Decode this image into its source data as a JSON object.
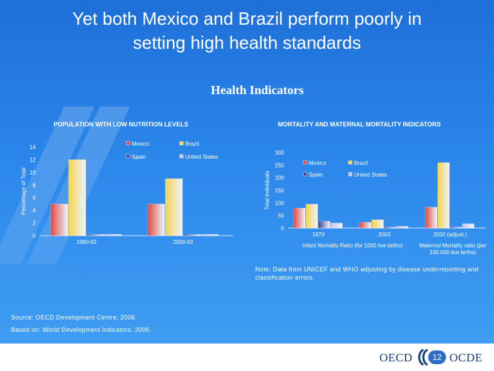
{
  "slide": {
    "title_line1": "Yet both Mexico and Brazil perform poorly in",
    "title_line2": "setting high health standards",
    "subtitle": "Health Indicators",
    "note": "Note: Data from UNICEF and WHO adjusting by disease underreporting and classification errors.",
    "source": "Source: OECD Development Centre, 2006.",
    "based_on": "Based on: World Development Indicators, 2006.",
    "page_number": "12",
    "logo_left": "OECD",
    "logo_right": "OCDE"
  },
  "colors": {
    "Mexico": "#e0443c",
    "Brazil": "#f6d24a",
    "Spain": "#3a3f8f",
    "United States": "#c9c2ee",
    "axis": "#d6e6fb"
  },
  "chart_data": [
    {
      "type": "bar",
      "title": "POPULATION WITH LOW NUTRITION LEVELS",
      "ylabel": "Percentage of Total",
      "xlabel": "",
      "ylim": [
        0,
        14
      ],
      "yticks": [
        0,
        2,
        4,
        6,
        8,
        10,
        12,
        14
      ],
      "legend_position": "top-right",
      "categories": [
        "1990-92",
        "2000-02"
      ],
      "series": [
        {
          "name": "Mexico",
          "values": [
            5,
            5
          ]
        },
        {
          "name": "Brazil",
          "values": [
            12,
            9
          ]
        },
        {
          "name": "Spain",
          "values": [
            0.2,
            0.2
          ]
        },
        {
          "name": "United States",
          "values": [
            0.2,
            0.2
          ]
        }
      ]
    },
    {
      "type": "bar",
      "title": "MORTALITY AND MATERNAL MORTALITY INDICATORS",
      "ylabel": "Total Individuals",
      "xlabel": "",
      "ylim": [
        0,
        300
      ],
      "yticks": [
        0,
        50,
        100,
        150,
        200,
        250,
        300
      ],
      "legend_position": "top-left",
      "categories": [
        "1970",
        "2003",
        "2000 (adjust.)"
      ],
      "group_labels": [
        "Infant Mortality Ratio (for 1000 live births)",
        "Maternal Mortality ratio (per 100 000 live births)"
      ],
      "series": [
        {
          "name": "Mexico",
          "values": [
            79,
            23,
            83
          ]
        },
        {
          "name": "Brazil",
          "values": [
            95,
            33,
            260
          ]
        },
        {
          "name": "Spain",
          "values": [
            27,
            4,
            4
          ]
        },
        {
          "name": "United States",
          "values": [
            20,
            7,
            17
          ]
        }
      ]
    }
  ]
}
